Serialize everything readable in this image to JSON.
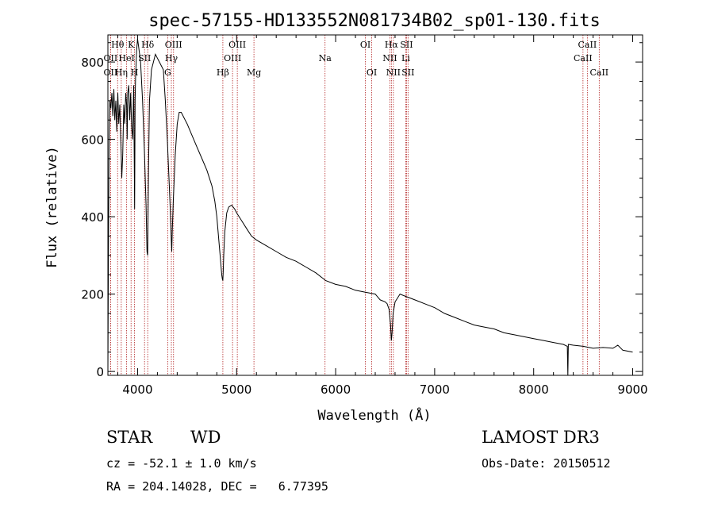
{
  "chart_data": {
    "type": "line",
    "title": "spec-57155-HD133552N081734B02_sp01-130.fits",
    "xlabel": "Wavelength (Å)",
    "ylabel": "Flux (relative)",
    "xlim": [
      3700,
      9100
    ],
    "ylim": [
      -10,
      870
    ],
    "xticks": [
      4000,
      5000,
      6000,
      7000,
      8000,
      9000
    ],
    "yticks": [
      0,
      200,
      400,
      600,
      800
    ],
    "series": [
      {
        "name": "flux",
        "x": [
          3700,
          3705,
          3712,
          3720,
          3730,
          3740,
          3750,
          3760,
          3770,
          3780,
          3790,
          3800,
          3810,
          3820,
          3830,
          3835,
          3840,
          3850,
          3860,
          3870,
          3880,
          3889,
          3895,
          3900,
          3910,
          3920,
          3930,
          3940,
          3950,
          3960,
          3970,
          3975,
          3980,
          3990,
          4000,
          4010,
          4030,
          4050,
          4070,
          4085,
          4095,
          4101,
          4110,
          4120,
          4140,
          4160,
          4180,
          4200,
          4220,
          4240,
          4260,
          4280,
          4300,
          4320,
          4330,
          4340,
          4345,
          4350,
          4360,
          4380,
          4400,
          4420,
          4440,
          4460,
          4480,
          4500,
          4550,
          4600,
          4650,
          4700,
          4750,
          4780,
          4800,
          4820,
          4840,
          4850,
          4855,
          4861,
          4865,
          4870,
          4880,
          4900,
          4920,
          4950,
          4980,
          5000,
          5050,
          5100,
          5150,
          5200,
          5300,
          5400,
          5500,
          5600,
          5700,
          5800,
          5900,
          6000,
          6100,
          6200,
          6300,
          6400,
          6450,
          6500,
          6520,
          6540,
          6555,
          6563,
          6570,
          6580,
          6600,
          6650,
          6700,
          6750,
          6800,
          6900,
          7000,
          7100,
          7200,
          7300,
          7400,
          7500,
          7600,
          7700,
          7800,
          7900,
          8000,
          8100,
          8200,
          8300,
          8340,
          8345,
          8350,
          8400,
          8500,
          8600,
          8700,
          8800,
          8850,
          8900,
          9000
        ],
        "y": [
          0,
          280,
          600,
          700,
          680,
          720,
          660,
          730,
          650,
          700,
          620,
          720,
          640,
          690,
          600,
          560,
          500,
          560,
          690,
          640,
          720,
          690,
          600,
          720,
          740,
          650,
          720,
          630,
          600,
          740,
          420,
          700,
          760,
          830,
          860,
          840,
          800,
          700,
          560,
          430,
          310,
          300,
          520,
          700,
          780,
          800,
          820,
          810,
          800,
          790,
          780,
          700,
          600,
          480,
          420,
          340,
          310,
          360,
          440,
          560,
          640,
          670,
          670,
          660,
          650,
          640,
          610,
          580,
          550,
          520,
          480,
          440,
          400,
          340,
          280,
          250,
          240,
          235,
          260,
          300,
          360,
          410,
          425,
          430,
          420,
          410,
          390,
          370,
          350,
          340,
          325,
          310,
          295,
          285,
          270,
          255,
          235,
          225,
          220,
          210,
          205,
          200,
          185,
          180,
          175,
          160,
          120,
          80,
          100,
          150,
          180,
          200,
          195,
          190,
          185,
          175,
          165,
          150,
          140,
          130,
          120,
          115,
          110,
          100,
          95,
          90,
          85,
          80,
          75,
          70,
          65,
          -20,
          70,
          68,
          65,
          60,
          62,
          60,
          68,
          55,
          50
        ]
      }
    ],
    "spectral_lines": [
      {
        "name": "Hθ",
        "wavelength": 3798,
        "row": 0
      },
      {
        "name": "OII",
        "wavelength": 3727,
        "row": 1
      },
      {
        "name": "OII",
        "wavelength": 3727,
        "row": 2
      },
      {
        "name": "Hη",
        "wavelength": 3835,
        "row": 2
      },
      {
        "name": "HeI",
        "wavelength": 3889,
        "row": 1
      },
      {
        "name": "K",
        "wavelength": 3934,
        "row": 0
      },
      {
        "name": "H",
        "wavelength": 3969,
        "row": 2
      },
      {
        "name": "SII",
        "wavelength": 4070,
        "row": 1
      },
      {
        "name": "Hδ",
        "wavelength": 4102,
        "row": 0
      },
      {
        "name": "OIII",
        "wavelength": 4363,
        "row": 0
      },
      {
        "name": "Hγ",
        "wavelength": 4341,
        "row": 1
      },
      {
        "name": "G",
        "wavelength": 4304,
        "row": 2
      },
      {
        "name": "Hβ",
        "wavelength": 4861,
        "row": 2
      },
      {
        "name": "OIII",
        "wavelength": 5007,
        "row": 0
      },
      {
        "name": "OIII",
        "wavelength": 4959,
        "row": 1
      },
      {
        "name": "Mg",
        "wavelength": 5175,
        "row": 2
      },
      {
        "name": "Na",
        "wavelength": 5893,
        "row": 1
      },
      {
        "name": "OI",
        "wavelength": 6300,
        "row": 0
      },
      {
        "name": "OI",
        "wavelength": 6364,
        "row": 2
      },
      {
        "name": "Hα",
        "wavelength": 6563,
        "row": 0
      },
      {
        "name": "NII",
        "wavelength": 6548,
        "row": 1
      },
      {
        "name": "NII",
        "wavelength": 6583,
        "row": 2
      },
      {
        "name": "SII",
        "wavelength": 6716,
        "row": 0
      },
      {
        "name": "Li",
        "wavelength": 6708,
        "row": 1
      },
      {
        "name": "SII",
        "wavelength": 6731,
        "row": 2
      },
      {
        "name": "CaII",
        "wavelength": 8542,
        "row": 0
      },
      {
        "name": "CaII",
        "wavelength": 8498,
        "row": 1
      },
      {
        "name": "CaII",
        "wavelength": 8662,
        "row": 2
      }
    ]
  },
  "info": {
    "class": "STAR",
    "subclass": "WD",
    "survey": "LAMOST DR3",
    "cz": "cz = -52.1 ± 1.0 km/s",
    "obs_date": "Obs-Date: 20150512",
    "coords": "RA = 204.14028, DEC =   6.77395"
  },
  "colors": {
    "line": "#000000",
    "marker_line": "#b22222"
  }
}
